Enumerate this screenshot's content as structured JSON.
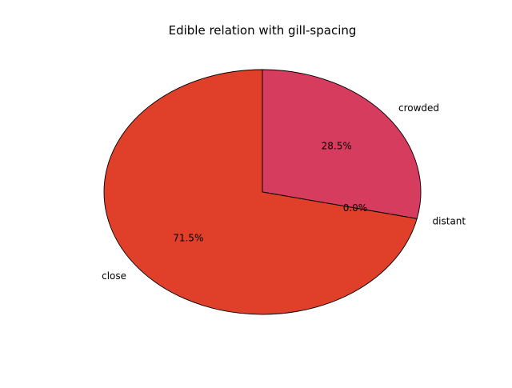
{
  "chart_data": {
    "type": "pie",
    "title": "Edible relation with gill-spacing",
    "slices": [
      {
        "label": "crowded",
        "percent_label": "28.5%",
        "value": 28.5,
        "color": "#d63c5e"
      },
      {
        "label": "distant",
        "percent_label": "0.0%",
        "value": 0.0,
        "color": "#d63c5e"
      },
      {
        "label": "close",
        "percent_label": "71.5%",
        "value": 71.5,
        "color": "#e04029"
      }
    ],
    "start_angle_deg": 90,
    "direction": "clockwise",
    "edge_color": "#000000"
  }
}
